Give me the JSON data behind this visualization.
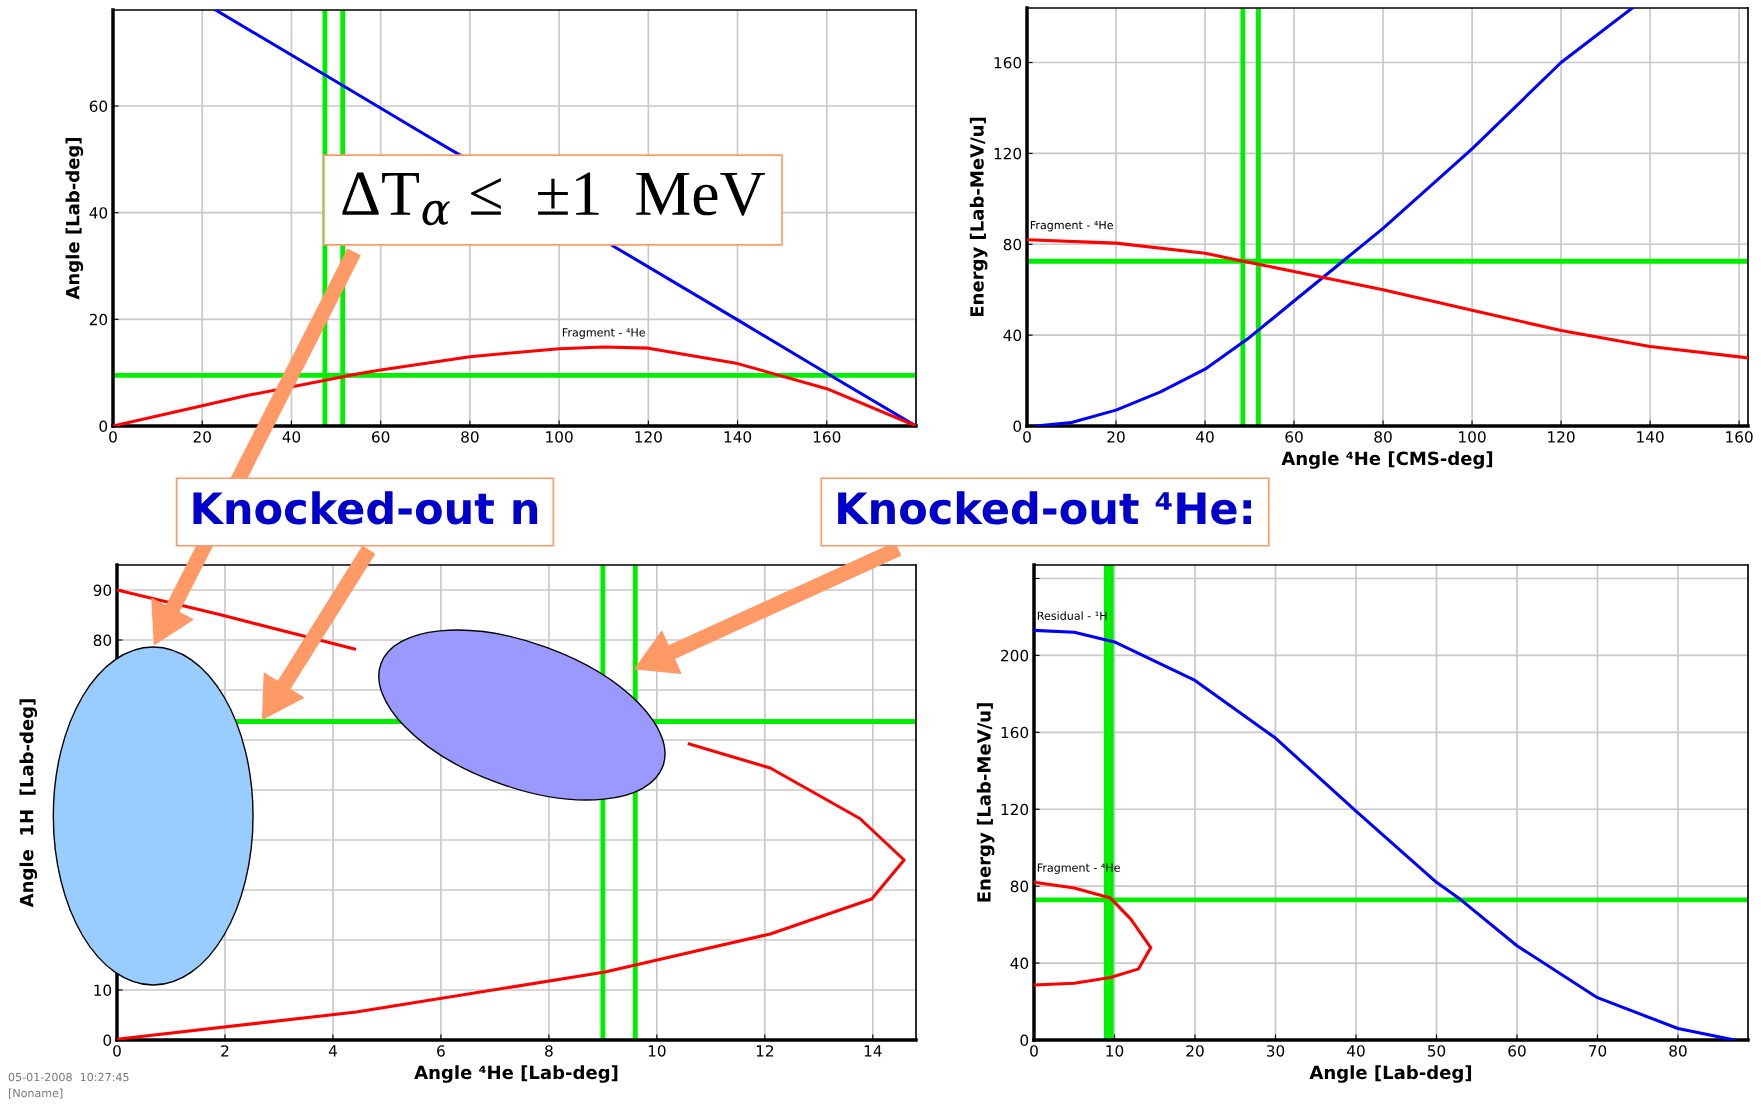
{
  "chart_data": [
    {
      "type": "line",
      "ylabel": "Angle [Lab-deg]",
      "xlim": [
        0,
        180
      ],
      "ylim": [
        0,
        78
      ],
      "xticks": [
        0,
        20,
        40,
        60,
        80,
        100,
        120,
        140,
        160
      ],
      "yticks": [
        0,
        20,
        40,
        60
      ],
      "grid": true,
      "series": [
        {
          "color": "#0000ff",
          "x": [
            23,
            50,
            70,
            78,
            100,
            112,
            140,
            160,
            180
          ],
          "values": [
            78,
            64.6,
            54.6,
            50.7,
            null,
            33.8,
            19.9,
            9.9,
            0
          ]
        },
        {
          "name": "Fragment - ⁴He",
          "color": "#ff0000",
          "x": [
            0,
            20,
            30,
            55,
            60,
            80,
            100,
            110,
            120,
            140,
            160,
            180
          ],
          "values": [
            0,
            3.8,
            5.7,
            9.8,
            10.5,
            13,
            14.5,
            14.8,
            14.6,
            11.7,
            7,
            0
          ]
        }
      ],
      "ref_lines": [
        {
          "axis": "x",
          "value": 47.5,
          "color": "#00ee00"
        },
        {
          "axis": "x",
          "value": 51.5,
          "color": "#00ee00"
        },
        {
          "axis": "y",
          "value": 9.5,
          "color": "#00ee00"
        }
      ],
      "annotations": [
        "ΔT$_{α}$ ≤  ±1  MeV"
      ]
    },
    {
      "type": "line",
      "xlabel": "Angle ⁴He [CMS-deg]",
      "ylabel": "Energy [Lab-MeV/u]",
      "xlim": [
        0,
        162
      ],
      "ylim": [
        0,
        184
      ],
      "xticks": [
        0,
        20,
        40,
        60,
        80,
        100,
        120,
        140,
        160
      ],
      "yticks": [
        0,
        40,
        80,
        120,
        160
      ],
      "grid": true,
      "series": [
        {
          "color": "#0000ff",
          "x": [
            2,
            10,
            20,
            30,
            40,
            50,
            60,
            70,
            80,
            100,
            120,
            136
          ],
          "values": [
            0,
            1.5,
            7,
            15,
            25,
            39,
            55,
            71,
            87,
            122,
            160,
            184
          ]
        },
        {
          "name": "Fragment - ⁴He",
          "color": "#ff0000",
          "x": [
            0,
            20,
            40,
            50,
            60,
            80,
            100,
            120,
            140,
            162
          ],
          "values": [
            82,
            80.5,
            76,
            72,
            68,
            60,
            51,
            42,
            35,
            30
          ]
        }
      ],
      "ref_lines": [
        {
          "axis": "x",
          "value": 48.5,
          "color": "#00ee00"
        },
        {
          "axis": "x",
          "value": 52,
          "color": "#00ee00"
        },
        {
          "axis": "y",
          "value": 72.5,
          "color": "#00ee00"
        }
      ]
    },
    {
      "type": "line",
      "xlabel": "Angle ⁴He [Lab-deg]",
      "ylabel": "Angle  1H  [Lab-deg]",
      "xlim": [
        0,
        14.8
      ],
      "ylim": [
        0,
        95
      ],
      "xticks": [
        0,
        2,
        4,
        6,
        8,
        10,
        12,
        14
      ],
      "yticks": [
        0,
        10,
        {
          "value": 20,
          "label": null
        },
        {
          "value": 30,
          "label": null
        },
        {
          "value": 40,
          "label": null
        },
        {
          "value": 50,
          "label": null
        },
        {
          "value": 60,
          "label": null
        },
        {
          "value": 70,
          "label": null
        },
        80,
        90
      ],
      "grid": true,
      "series": [
        {
          "color": "#ff0000",
          "x": [
            0,
            1.9,
            4.4,
            7,
            9,
            10.6,
            12.1,
            13.76,
            14.58,
            13.98,
            12.1,
            9.04,
            4.43,
            0.03
          ],
          "values": [
            90,
            85.1,
            78.2,
            null,
            null,
            59.2,
            54.4,
            44.3,
            36,
            28.2,
            21.2,
            13.6,
            5.6,
            0.2
          ]
        }
      ],
      "ref_lines": [
        {
          "axis": "x",
          "value": 9.0,
          "color": "#00ee00"
        },
        {
          "axis": "x",
          "value": 9.6,
          "color": "#00ee00"
        },
        {
          "axis": "y",
          "value": 63.7,
          "color": "#00ee00"
        }
      ],
      "annotations": [
        "Knocked-out n",
        "Knocked-out ⁴He:",
        "05-01-2008  10:27:45",
        "[Noname]"
      ]
    },
    {
      "type": "line",
      "xlabel": "Angle [Lab-deg]",
      "ylabel": "Energy [Lab-MeV/u]",
      "xlim": [
        0,
        88.7
      ],
      "ylim": [
        0,
        247
      ],
      "xticks": [
        0,
        10,
        20,
        30,
        40,
        50,
        60,
        70,
        80
      ],
      "yticks": [
        0,
        40,
        80,
        120,
        160,
        200,
        {
          "value": 240,
          "label": null
        }
      ],
      "grid": true,
      "series": [
        {
          "name": "Residual - ¹H",
          "color": "#0000ff",
          "x": [
            0,
            5,
            10,
            20,
            30,
            40,
            50,
            53,
            60,
            70,
            80,
            87
          ],
          "values": [
            213,
            212,
            207,
            187,
            157,
            119,
            82,
            73,
            49,
            22,
            6,
            0
          ]
        },
        {
          "name": "Fragment - ⁴He",
          "color": "#ff0000",
          "x": [
            0,
            5,
            9.5,
            12,
            14.5,
            13,
            9.5,
            5,
            0
          ],
          "values": [
            82,
            79,
            73.8,
            63,
            48,
            37,
            32.5,
            29.5,
            28.6
          ]
        }
      ],
      "ref_lines": [
        {
          "axis": "x",
          "value": 9.0,
          "color": "#00ee00"
        },
        {
          "axis": "x",
          "value": 9.6,
          "color": "#00ee00"
        },
        {
          "axis": "y",
          "value": 72.9,
          "color": "#00ee00"
        }
      ]
    }
  ]
}
